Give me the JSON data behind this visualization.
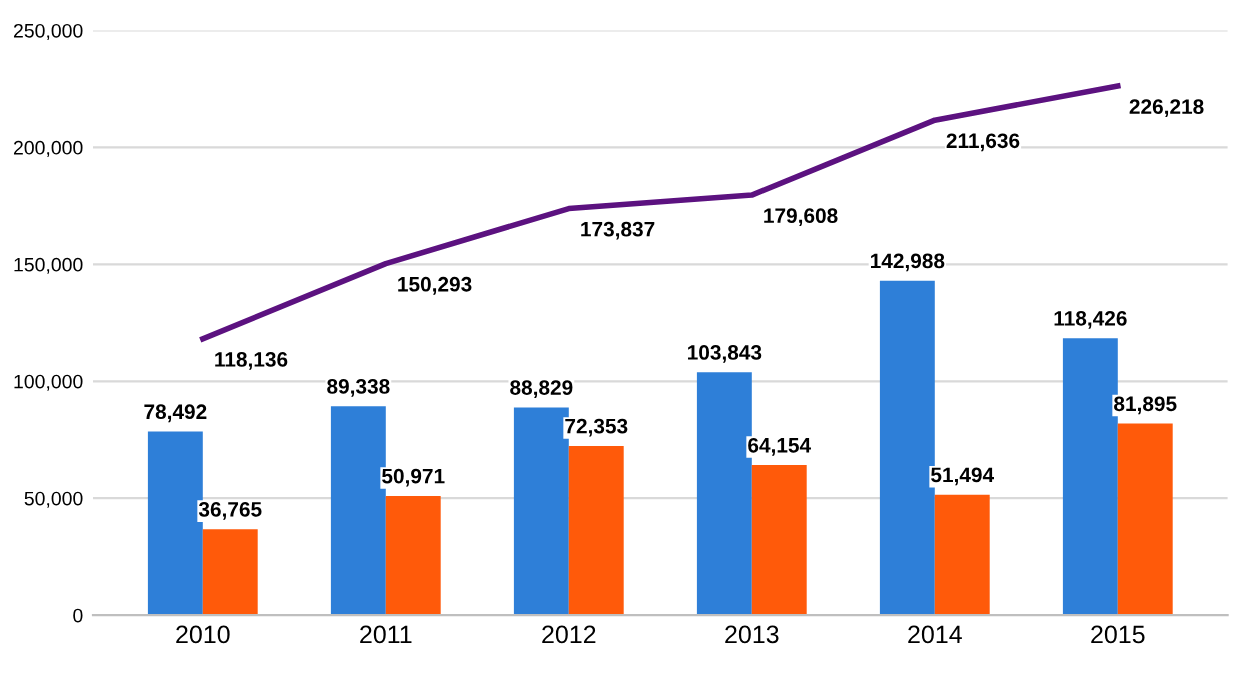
{
  "chart_data": {
    "type": "bar",
    "categories": [
      "2010",
      "2011",
      "2012",
      "2013",
      "2014",
      "2015"
    ],
    "series": [
      {
        "color": "#2e7fd8",
        "values": [
          78492,
          89338,
          88829,
          103843,
          142988,
          118426
        ],
        "value_labels": [
          "78,492",
          "89,338",
          "88,829",
          "103,843",
          "142,988",
          "118,426"
        ]
      },
      {
        "color": "#ff5a0a",
        "values": [
          36765,
          50971,
          72353,
          64154,
          51494,
          81895
        ],
        "value_labels": [
          "36,765",
          "50,971",
          "72,353",
          "64,154",
          "51,494",
          "81,895"
        ]
      },
      {
        "type": "line",
        "color": "#5c1280",
        "values": [
          118136,
          150293,
          173837,
          179608,
          211636,
          226218
        ],
        "value_labels": [
          "118,136",
          "150,293",
          "173,837",
          "179,608",
          "211,636",
          "226,218"
        ]
      }
    ],
    "ylim": [
      0,
      250000
    ],
    "yticks": [
      {
        "value": 0,
        "label": "0"
      },
      {
        "value": 50000,
        "label": "50,000"
      },
      {
        "value": 100000,
        "label": "100,000"
      },
      {
        "value": 150000,
        "label": "150,000"
      },
      {
        "value": 200000,
        "label": "200,000"
      },
      {
        "value": 250000,
        "label": "250,000"
      }
    ],
    "grid": "y",
    "legend": false,
    "marker": "none",
    "line_style": "solid"
  }
}
